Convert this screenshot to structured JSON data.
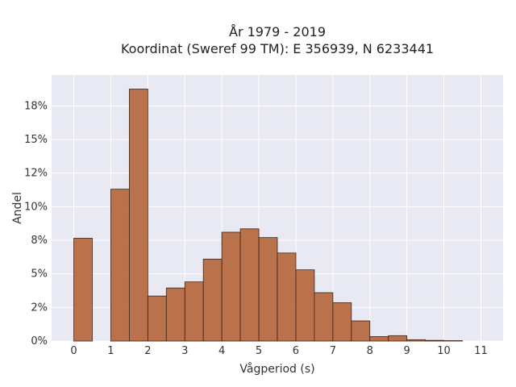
{
  "chart_data": {
    "type": "bar",
    "title_line1": "År 1979 - 2019",
    "title_line2": "Koordinat (Sweref 99 TM): E 356939, N 6233441",
    "xlabel": "Vågperiod (s)",
    "ylabel": "Andel",
    "xlim": [
      -0.6,
      11.6
    ],
    "ylim": [
      0,
      0.198
    ],
    "x_ticks": [
      0,
      1,
      2,
      3,
      4,
      5,
      6,
      7,
      8,
      9,
      10,
      11
    ],
    "y_ticks": [
      {
        "value": 0.0,
        "label": "0%"
      },
      {
        "value": 0.025,
        "label": "2%"
      },
      {
        "value": 0.05,
        "label": "5%"
      },
      {
        "value": 0.075,
        "label": "8%"
      },
      {
        "value": 0.1,
        "label": "10%"
      },
      {
        "value": 0.125,
        "label": "12%"
      },
      {
        "value": 0.15,
        "label": "15%"
      },
      {
        "value": 0.175,
        "label": "18%"
      }
    ],
    "bar_width": 0.5,
    "bars": [
      {
        "x_start": 0.0,
        "value": 0.0765
      },
      {
        "x_start": 1.0,
        "value": 0.113
      },
      {
        "x_start": 1.5,
        "value": 0.1875
      },
      {
        "x_start": 2.0,
        "value": 0.0335
      },
      {
        "x_start": 2.5,
        "value": 0.0395
      },
      {
        "x_start": 3.0,
        "value": 0.044
      },
      {
        "x_start": 3.5,
        "value": 0.061
      },
      {
        "x_start": 4.0,
        "value": 0.081
      },
      {
        "x_start": 4.5,
        "value": 0.0835
      },
      {
        "x_start": 5.0,
        "value": 0.077
      },
      {
        "x_start": 5.5,
        "value": 0.0655
      },
      {
        "x_start": 6.0,
        "value": 0.053
      },
      {
        "x_start": 6.5,
        "value": 0.036
      },
      {
        "x_start": 7.0,
        "value": 0.0285
      },
      {
        "x_start": 7.5,
        "value": 0.015
      },
      {
        "x_start": 8.0,
        "value": 0.0033
      },
      {
        "x_start": 8.5,
        "value": 0.004
      },
      {
        "x_start": 9.0,
        "value": 0.001
      },
      {
        "x_start": 9.5,
        "value": 0.0005
      },
      {
        "x_start": 10.0,
        "value": 0.0003
      }
    ],
    "grid": true
  }
}
